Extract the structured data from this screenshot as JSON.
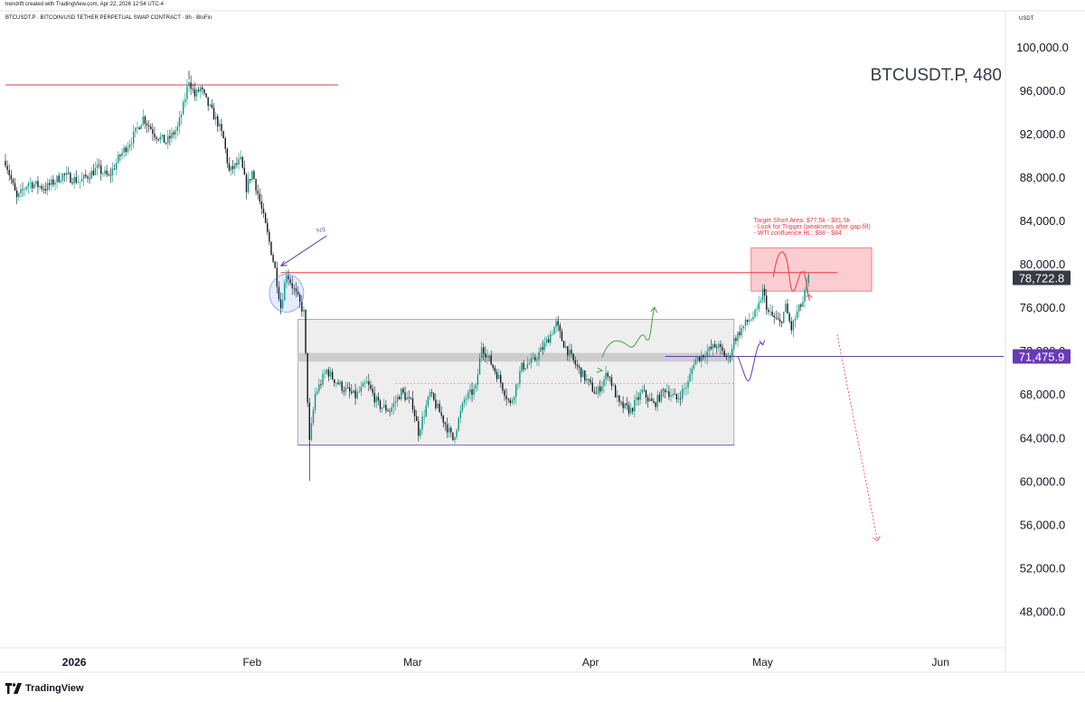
{
  "header": {
    "credit": "trendrift created with TradingView.com, Apr 22, 2026 12:54 UTC-4",
    "subtitle": "BTCUSDT.P · BITCOIN/USD TETHER PERPETUAL SWAP CONTRACT · 8h · BloFin",
    "currency": "USDT"
  },
  "chart_data": {
    "type": "candlestick",
    "symbol_label": "BTCUSDT.P, 480",
    "y_ticks": [
      "100,000.0",
      "96,000.0",
      "92,000.0",
      "88,000.0",
      "84,000.0",
      "80,000.0",
      "76,000.0",
      "72,000.0",
      "68,000.0",
      "64,000.0",
      "60,000.0",
      "56,000.0",
      "52,000.0",
      "48,000.0"
    ],
    "y_tick_values": [
      100000,
      96000,
      92000,
      88000,
      84000,
      80000,
      76000,
      72000,
      68000,
      64000,
      60000,
      56000,
      52000,
      48000
    ],
    "ylim": [
      44700,
      102000
    ],
    "x_ticks": [
      {
        "label": "2026",
        "date": "2026-01-01",
        "bold": true
      },
      {
        "label": "Feb",
        "date": "2026-02-01",
        "bold": false
      },
      {
        "label": "Mar",
        "date": "2026-03-01",
        "bold": false
      },
      {
        "label": "Apr",
        "date": "2026-04-01",
        "bold": false
      },
      {
        "label": "May",
        "date": "2026-05-01",
        "bold": false
      },
      {
        "label": "Jun",
        "date": "2026-06-01",
        "bold": false
      }
    ],
    "xlim": [
      "2025-12-20",
      "2026-06-12"
    ],
    "price_labels": [
      {
        "value": "78,722.8",
        "price": 78722.8,
        "color": "#363a45"
      },
      {
        "value": "71,475.9",
        "price": 71475.9,
        "color": "#673ab7"
      }
    ],
    "close_path": [
      [
        "2025-12-20",
        89500
      ],
      [
        "2025-12-22",
        86000
      ],
      [
        "2025-12-24",
        87500
      ],
      [
        "2025-12-27",
        87000
      ],
      [
        "2025-12-30",
        88200
      ],
      [
        "2026-01-02",
        87600
      ],
      [
        "2026-01-05",
        88800
      ],
      [
        "2026-01-07",
        88000
      ],
      [
        "2026-01-09",
        90000
      ],
      [
        "2026-01-11",
        91500
      ],
      [
        "2026-01-13",
        93500
      ],
      [
        "2026-01-15",
        92000
      ],
      [
        "2026-01-17",
        91200
      ],
      [
        "2026-01-19",
        92500
      ],
      [
        "2026-01-20",
        94500
      ],
      [
        "2026-01-21",
        97000
      ],
      [
        "2026-01-22",
        95500
      ],
      [
        "2026-01-23",
        96200
      ],
      [
        "2026-01-24",
        95000
      ],
      [
        "2026-01-26",
        93000
      ],
      [
        "2026-01-27",
        91500
      ],
      [
        "2026-01-28",
        88500
      ],
      [
        "2026-01-30",
        89500
      ],
      [
        "2026-01-31",
        87000
      ],
      [
        "2026-02-01",
        88500
      ],
      [
        "2026-02-02",
        86500
      ],
      [
        "2026-02-04",
        82000
      ],
      [
        "2026-02-05",
        79500
      ],
      [
        "2026-02-06",
        76000
      ],
      [
        "2026-02-07",
        79200
      ],
      [
        "2026-02-08",
        78000
      ],
      [
        "2026-02-10",
        75500
      ],
      [
        "2026-02-11",
        63500
      ],
      [
        "2026-02-12",
        68000
      ],
      [
        "2026-02-14",
        70200
      ],
      [
        "2026-02-15",
        69500
      ],
      [
        "2026-02-17",
        68500
      ],
      [
        "2026-02-19",
        67800
      ],
      [
        "2026-02-21",
        69000
      ],
      [
        "2026-02-23",
        67000
      ],
      [
        "2026-02-25",
        66500
      ],
      [
        "2026-02-27",
        68200
      ],
      [
        "2026-03-01",
        67000
      ],
      [
        "2026-03-02",
        64500
      ],
      [
        "2026-03-04",
        68000
      ],
      [
        "2026-03-06",
        66000
      ],
      [
        "2026-03-08",
        63800
      ],
      [
        "2026-03-10",
        67500
      ],
      [
        "2026-03-12",
        68500
      ],
      [
        "2026-03-13",
        72500
      ],
      [
        "2026-03-14",
        71500
      ],
      [
        "2026-03-16",
        69500
      ],
      [
        "2026-03-18",
        67000
      ],
      [
        "2026-03-20",
        70500
      ],
      [
        "2026-03-22",
        71000
      ],
      [
        "2026-03-24",
        72500
      ],
      [
        "2026-03-26",
        74500
      ],
      [
        "2026-03-27",
        73000
      ],
      [
        "2026-03-29",
        71000
      ],
      [
        "2026-03-31",
        69500
      ],
      [
        "2026-04-02",
        68000
      ],
      [
        "2026-04-04",
        70000
      ],
      [
        "2026-04-06",
        67000
      ],
      [
        "2026-04-08",
        66500
      ],
      [
        "2026-04-10",
        68200
      ],
      [
        "2026-04-12",
        67000
      ],
      [
        "2026-04-14",
        68500
      ],
      [
        "2026-04-16",
        67500
      ],
      [
        "2026-04-18",
        69000
      ],
      [
        "2026-04-19",
        71000
      ],
      [
        "2026-04-21",
        71800
      ],
      [
        "2026-04-23",
        72500
      ],
      [
        "2026-04-25",
        71200
      ],
      [
        "2026-04-26",
        73000
      ],
      [
        "2026-04-28",
        74500
      ],
      [
        "2026-04-30",
        75500
      ],
      [
        "2026-05-01",
        77500
      ],
      [
        "2026-05-02",
        75500
      ],
      [
        "2026-05-04",
        74500
      ],
      [
        "2026-05-05",
        76000
      ],
      [
        "2026-05-06",
        74000
      ],
      [
        "2026-05-07",
        75500
      ],
      [
        "2026-05-08",
        76500
      ],
      [
        "2026-05-09",
        78700
      ]
    ],
    "horizontal_lines": [
      {
        "price": 96500,
        "from": "2025-12-20",
        "to": "2026-02-16",
        "color": "#f23645"
      },
      {
        "price": 79200,
        "from": "2026-02-06",
        "to": "2026-05-14",
        "color": "#f23645"
      },
      {
        "price": 71475.9,
        "from": "2026-04-14",
        "to": "2026-06-12",
        "color": "#673ab7"
      }
    ],
    "range_box": {
      "from": "2026-02-09",
      "to": "2026-04-26",
      "top": 74900,
      "bottom": 63300
    },
    "mid_band": {
      "from": "2026-02-09",
      "to": "2026-04-26",
      "top": 71800,
      "bottom": 71000
    },
    "target_box": {
      "from": "2026-04-29",
      "to": "2026-05-20",
      "top": 81500,
      "bottom": 77500
    },
    "annotation": {
      "lines": [
        "Target Short Area: $77.5k - $81.5k",
        " - Look for Trigger (weakness after gap fill)",
        " - WTI confluence HL: $88 - $84"
      ],
      "color": "#f23645",
      "date": "2026-05-01",
      "price": 84000
    },
    "fvg_label": {
      "text": "fvg",
      "color": "#7e57c2"
    },
    "colors": {
      "up": "#089981",
      "down": "#131722",
      "red": "#f23645",
      "purple": "#673ab7",
      "green": "#43a047",
      "circle": "#2962ff",
      "grid": "#f0f3fa"
    }
  },
  "footer": {
    "logo_text": "TradingView"
  }
}
